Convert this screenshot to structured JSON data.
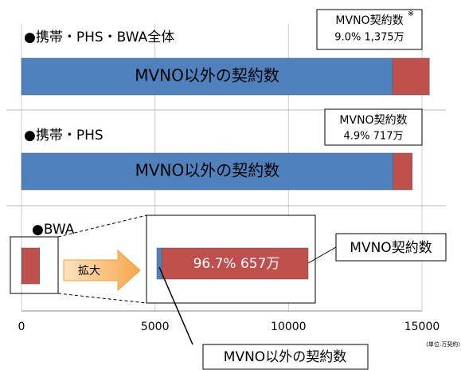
{
  "chart_data": {
    "type": "stacked_barh",
    "categories": [
      "●携帯・PHS・BWA全体",
      "●携帯・PHS",
      "●BWA"
    ],
    "series": [
      {
        "name": "MVNO以外の契約数",
        "color": "#4f81bd",
        "values": [
          13900,
          13920,
          22
        ]
      },
      {
        "name": "MVNO契約数",
        "color": "#c0504d",
        "values": [
          1375,
          717,
          657
        ]
      }
    ],
    "xlim": [
      0,
      15000
    ],
    "xticks": [
      0,
      5000,
      10000,
      15000
    ],
    "grid": true,
    "annotations": [
      "9.0%  1,375万",
      "4.9%  717万",
      "96.7%  657万",
      "拡大",
      "※",
      "(単位:万契約)"
    ]
  }
}
